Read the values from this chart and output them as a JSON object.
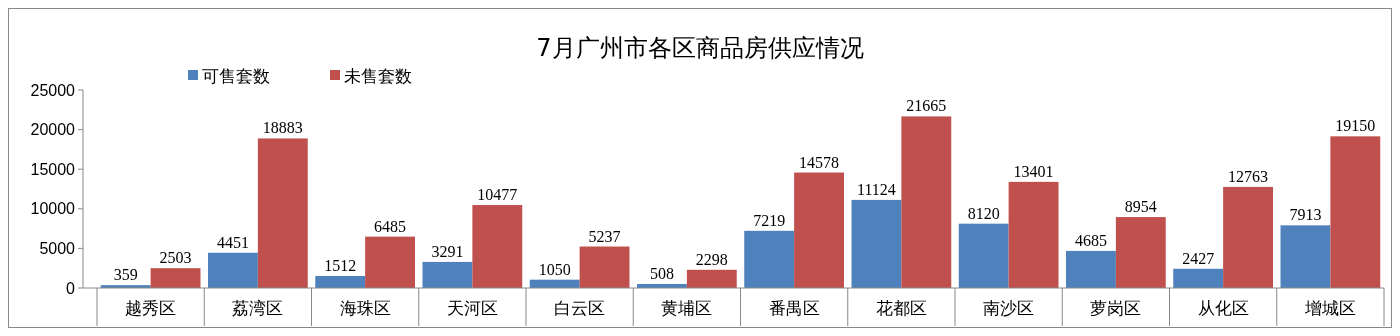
{
  "chart_data": {
    "type": "bar",
    "title": "7月广州市各区商品房供应情况",
    "categories": [
      "越秀区",
      "荔湾区",
      "海珠区",
      "天河区",
      "白云区",
      "黄埔区",
      "番禺区",
      "花都区",
      "南沙区",
      "萝岗区",
      "从化区",
      "增城区"
    ],
    "series": [
      {
        "name": "可售套数",
        "color": "#4f81bd",
        "values": [
          359,
          4451,
          1512,
          3291,
          1050,
          508,
          7219,
          11124,
          8120,
          4685,
          2427,
          7913
        ]
      },
      {
        "name": "未售套数",
        "color": "#c0504d",
        "values": [
          2503,
          18883,
          6485,
          10477,
          5237,
          2298,
          14578,
          21665,
          13401,
          8954,
          12763,
          19150
        ]
      }
    ],
    "ylim": [
      0,
      25000
    ],
    "yticks": [
      0,
      5000,
      10000,
      15000,
      20000,
      25000
    ],
    "grid": false,
    "legend": "top left",
    "data_labels": true
  }
}
